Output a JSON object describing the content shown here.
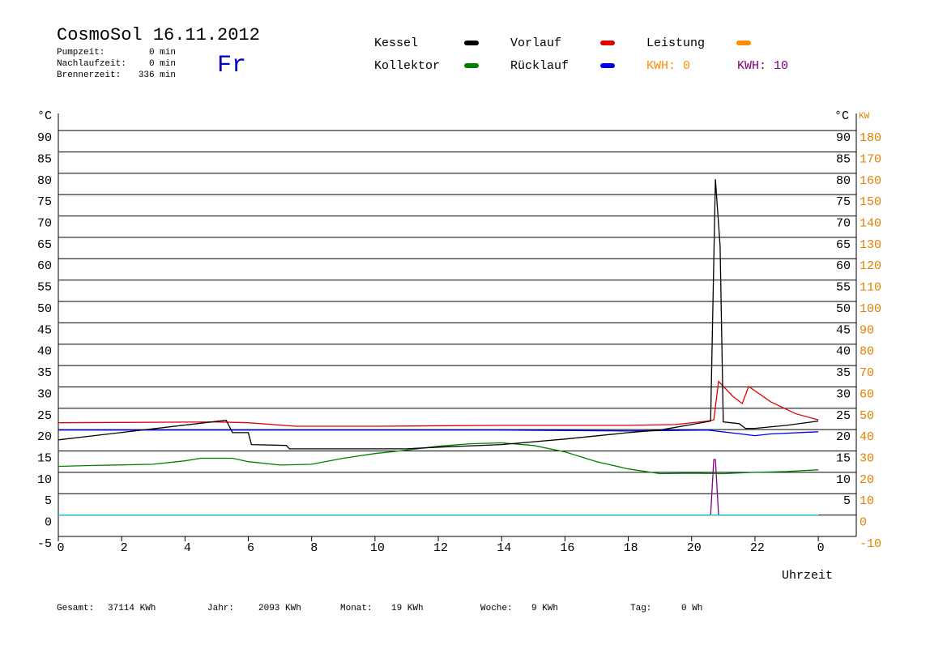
{
  "chart_data": {
    "type": "line",
    "title": "CosmoSol 16.11.2012",
    "weekday": "Fr",
    "info": [
      {
        "label": "Pumpzeit:",
        "value": "0 min"
      },
      {
        "label": "Nachlaufzeit:",
        "value": "0 min"
      },
      {
        "label": "Brennerzeit:",
        "value": "336 min"
      }
    ],
    "kwh_labels": [
      {
        "text": "KWH: 0",
        "color": "#ff8c00"
      },
      {
        "text": "KWH: 10",
        "color": "#800080"
      }
    ],
    "y_label": "°C",
    "y2_label_left": "°C",
    "y2_label": "KW",
    "x_label": "Uhrzeit",
    "xlim": [
      0,
      25.2
    ],
    "xticks": [
      0,
      2,
      4,
      6,
      8,
      10,
      12,
      14,
      16,
      18,
      20,
      22,
      {
        "value": 24,
        "label": "0"
      }
    ],
    "ylim": [
      -5,
      94
    ],
    "yticks": [
      -5,
      0,
      5,
      10,
      15,
      20,
      25,
      30,
      35,
      40,
      45,
      50,
      55,
      60,
      65,
      70,
      75,
      80,
      85,
      90
    ],
    "y2lim": [
      -10,
      188
    ],
    "y2ticks": [
      -10,
      0,
      10,
      20,
      30,
      40,
      50,
      60,
      70,
      80,
      90,
      100,
      110,
      120,
      130,
      140,
      150,
      160,
      170,
      180
    ],
    "grid": true,
    "series": [
      {
        "name": "Kessel",
        "color": "#000000",
        "x": [
          0,
          5.3,
          5.5,
          6.0,
          6.1,
          7.2,
          7.3,
          11,
          12,
          14,
          16,
          18,
          19,
          20,
          20.6,
          20.75,
          20.9,
          21.0,
          21.5,
          21.7,
          22,
          23,
          24
        ],
        "values": [
          17.6,
          22.2,
          19.3,
          19.3,
          16.5,
          16.3,
          15.5,
          15.5,
          15.9,
          16.5,
          17.8,
          19.3,
          19.9,
          21.2,
          22,
          78.6,
          63,
          21.8,
          21.4,
          20.3,
          20.3,
          21,
          22
        ]
      },
      {
        "name": "Kollektor",
        "color": "#008000",
        "x": [
          0,
          1,
          3,
          4,
          4.5,
          5.5,
          6,
          7,
          8,
          9,
          10,
          11,
          12,
          13,
          14,
          15,
          16,
          17,
          18,
          19,
          20,
          21,
          22,
          23,
          24
        ],
        "values": [
          11.4,
          11.6,
          11.9,
          12.7,
          13.3,
          13.3,
          12.5,
          11.7,
          11.9,
          13.3,
          14.4,
          15.2,
          16.1,
          16.7,
          16.9,
          16.3,
          14.8,
          12.5,
          10.8,
          9.7,
          9.8,
          9.7,
          10,
          10.2,
          10.6
        ]
      },
      {
        "name": "Vorlauf",
        "color": "#e00000",
        "x": [
          0,
          5,
          6,
          7.5,
          10,
          14,
          18,
          19.5,
          20.5,
          20.7,
          20.85,
          21.3,
          21.6,
          21.8,
          22.5,
          23.3,
          24
        ],
        "values": [
          21.6,
          21.8,
          21.6,
          20.8,
          20.8,
          21,
          21,
          21.2,
          22,
          22.3,
          31.3,
          27.8,
          26.1,
          30.1,
          26.5,
          23.7,
          22.3
        ]
      },
      {
        "name": "Rücklauf",
        "color": "#0000e0",
        "x": [
          0,
          10,
          14,
          18,
          20.5,
          21.2,
          22,
          22.5,
          24
        ],
        "values": [
          19.9,
          19.9,
          19.9,
          19.7,
          19.9,
          19.3,
          18.6,
          19,
          19.5
        ]
      },
      {
        "name": "Leistung",
        "color": "#ff8c00",
        "axis": "y2",
        "x": [
          0,
          24
        ],
        "values": [
          0,
          0
        ]
      },
      {
        "color": "#800080",
        "x": [
          0,
          20.6,
          20.7,
          20.75,
          20.85,
          24
        ],
        "values": [
          0,
          0,
          13,
          13,
          0,
          0
        ]
      },
      {
        "color": "#00d8d8",
        "x": [
          0,
          24
        ],
        "values": [
          0,
          0
        ]
      }
    ],
    "totals": [
      {
        "label": "Gesamt:",
        "value": "37114 KWh"
      },
      {
        "label": "Jahr:",
        "value": "2093 KWh"
      },
      {
        "label": "Monat:",
        "value": "19 KWh"
      },
      {
        "label": "Woche:",
        "value": "9 KWh"
      },
      {
        "label": "Tag:",
        "value": "0 Wh"
      }
    ]
  }
}
